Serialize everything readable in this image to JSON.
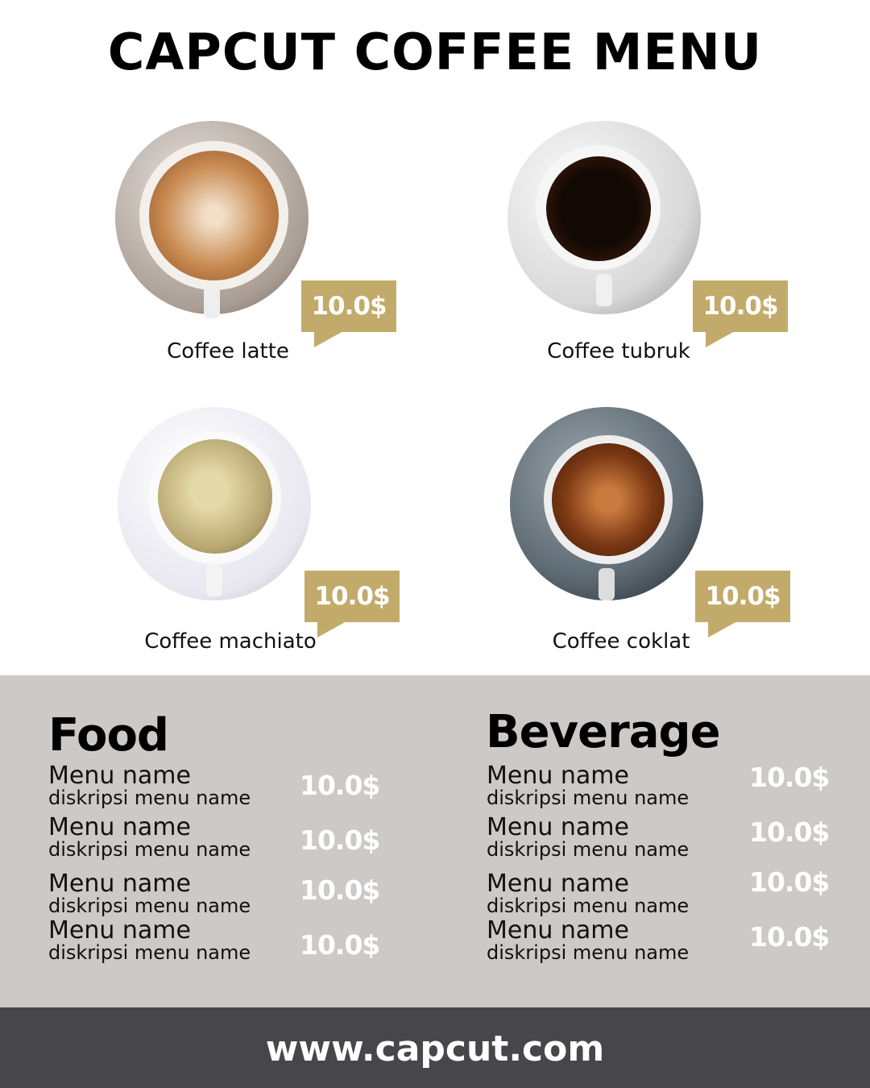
{
  "title": "CAPCUT COFFEE MENU",
  "colors": {
    "accent": "#c2ab6a",
    "band": "#cdc9c6",
    "footer": "#47464b"
  },
  "items": [
    {
      "name": "Coffee latte",
      "price": "10.0$"
    },
    {
      "name": "Coffee tubruk",
      "price": "10.0$"
    },
    {
      "name": "Coffee machiato",
      "price": "10.0$"
    },
    {
      "name": "Coffee coklat",
      "price": "10.0$"
    }
  ],
  "food": {
    "title": "Food",
    "rows": [
      {
        "name": "Menu name",
        "desc": "diskripsi menu name",
        "price": "10.0$"
      },
      {
        "name": "Menu name",
        "desc": "diskripsi menu name",
        "price": "10.0$"
      },
      {
        "name": "Menu name",
        "desc": "diskripsi menu name",
        "price": "10.0$"
      },
      {
        "name": "Menu name",
        "desc": "diskripsi menu name",
        "price": "10.0$"
      }
    ]
  },
  "beverage": {
    "title": "Beverage",
    "rows": [
      {
        "name": "Menu name",
        "desc": "diskripsi menu name",
        "price": "10.0$"
      },
      {
        "name": "Menu name",
        "desc": "diskripsi menu name",
        "price": "10.0$"
      },
      {
        "name": "Menu name",
        "desc": "diskripsi menu name",
        "price": "10.0$"
      },
      {
        "name": "Menu name",
        "desc": "diskripsi menu name",
        "price": "10.0$"
      }
    ]
  },
  "footer": {
    "url": "www.capcut.com"
  }
}
